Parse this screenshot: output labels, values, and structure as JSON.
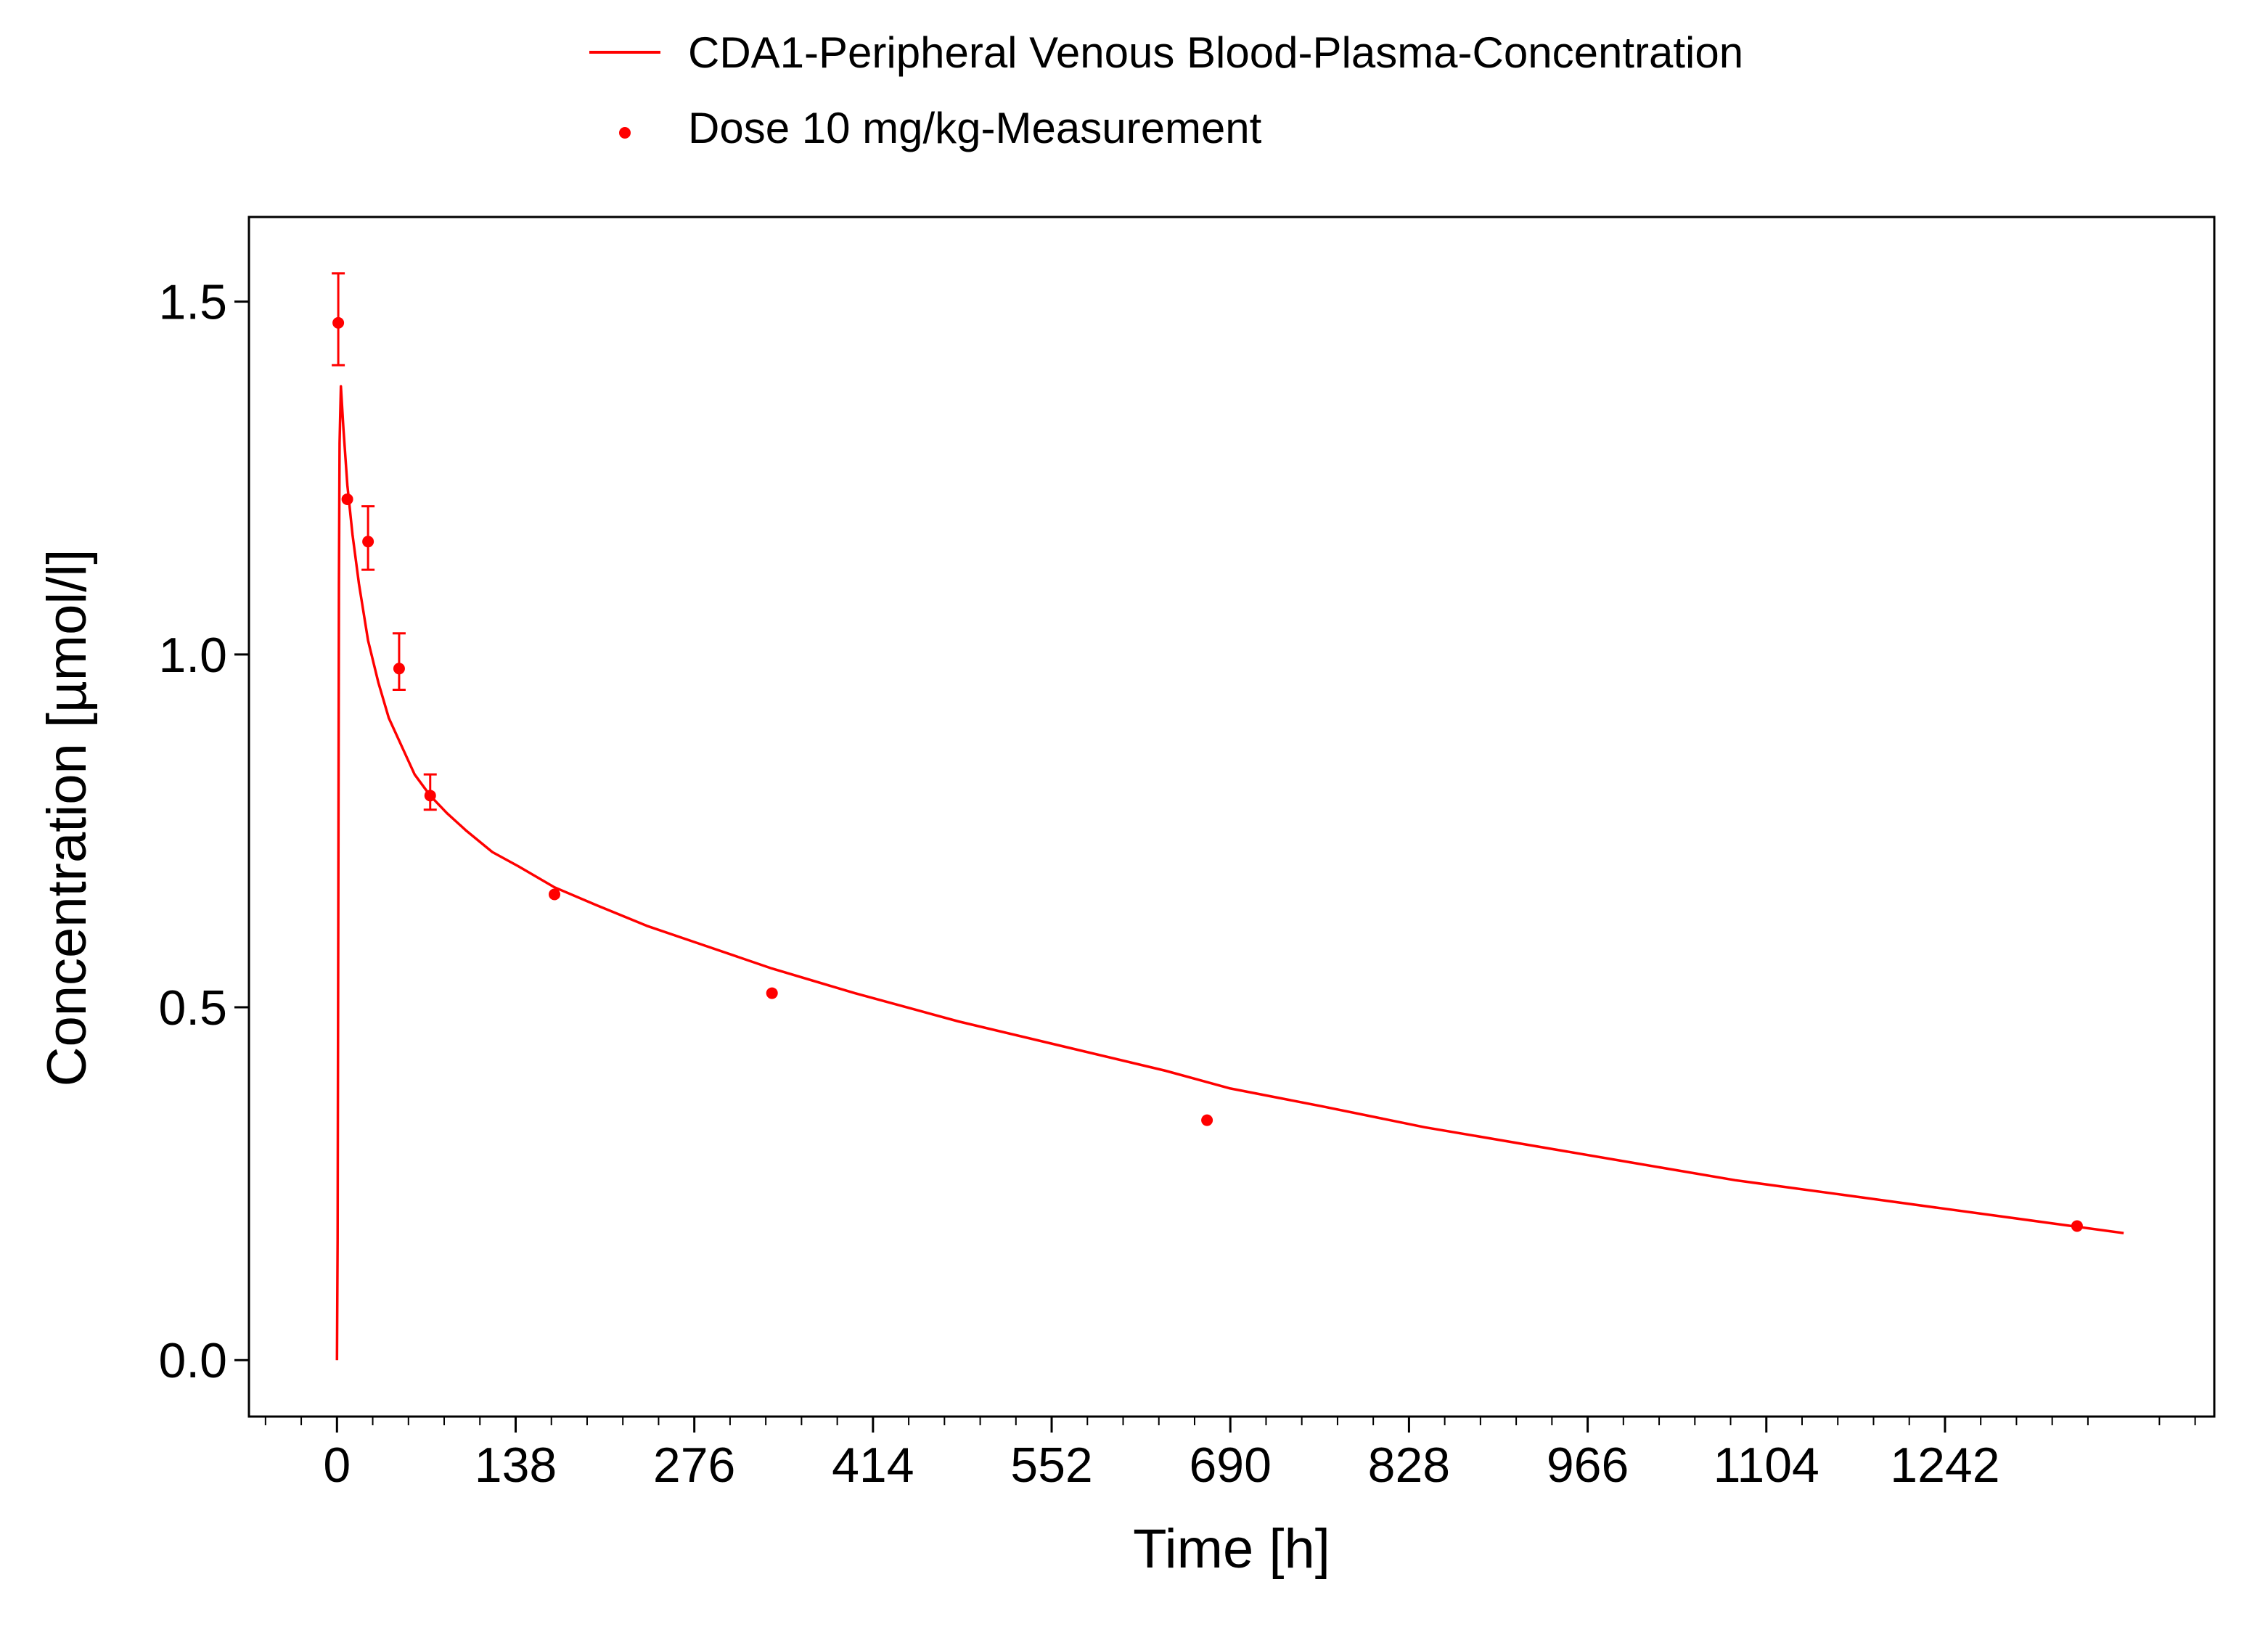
{
  "chart_data": {
    "type": "line",
    "title": "",
    "xlabel": "Time [h]",
    "ylabel": "Concentration [µmol/l]",
    "xlim": [
      -68,
      1450
    ],
    "ylim": [
      -0.08,
      1.62
    ],
    "xticks": [
      0,
      138,
      276,
      414,
      552,
      690,
      828,
      966,
      1104,
      1242
    ],
    "xtick_labels": [
      "0",
      "138",
      "276",
      "414",
      "552",
      "690",
      "828",
      "966",
      "1104",
      "1242"
    ],
    "yticks": [
      0.0,
      0.5,
      1.0,
      1.5
    ],
    "ytick_labels": [
      "0.0",
      "0.5",
      "1.0",
      "1.5"
    ],
    "grid": false,
    "legend_position": "top",
    "colors": {
      "series": "#ff0000",
      "axis": "#000000"
    },
    "series": [
      {
        "name": "CDA1-Peripheral Venous Blood-Plasma-Concentration",
        "kind": "line",
        "x": [
          0,
          0.5,
          1,
          1.5,
          2,
          3,
          5,
          8,
          12,
          17,
          24,
          32,
          40,
          50,
          60,
          72,
          85,
          100,
          120,
          140,
          168,
          200,
          240,
          280,
          336,
          400,
          480,
          560,
          640,
          690,
          760,
          840,
          920,
          1000,
          1080,
          1160,
          1240,
          1320,
          1380
        ],
        "y": [
          0.0,
          0.17,
          0.63,
          1.1,
          1.3,
          1.38,
          1.32,
          1.24,
          1.17,
          1.1,
          1.02,
          0.96,
          0.91,
          0.87,
          0.83,
          0.8,
          0.775,
          0.75,
          0.72,
          0.7,
          0.67,
          0.645,
          0.615,
          0.59,
          0.555,
          0.52,
          0.48,
          0.445,
          0.41,
          0.385,
          0.36,
          0.33,
          0.305,
          0.28,
          0.255,
          0.235,
          0.215,
          0.195,
          0.18
        ]
      },
      {
        "name": "Dose 10 mg/kg-Measurement",
        "kind": "scatter",
        "x": [
          1,
          8,
          24,
          48,
          72,
          168,
          336,
          672,
          1344
        ],
        "y": [
          1.47,
          1.22,
          1.16,
          0.98,
          0.8,
          0.66,
          0.52,
          0.34,
          0.19
        ],
        "err_low": [
          1.41,
          null,
          1.12,
          0.95,
          0.78,
          null,
          null,
          null,
          null
        ],
        "err_high": [
          1.54,
          null,
          1.21,
          1.03,
          0.83,
          null,
          null,
          null,
          null
        ]
      }
    ]
  }
}
